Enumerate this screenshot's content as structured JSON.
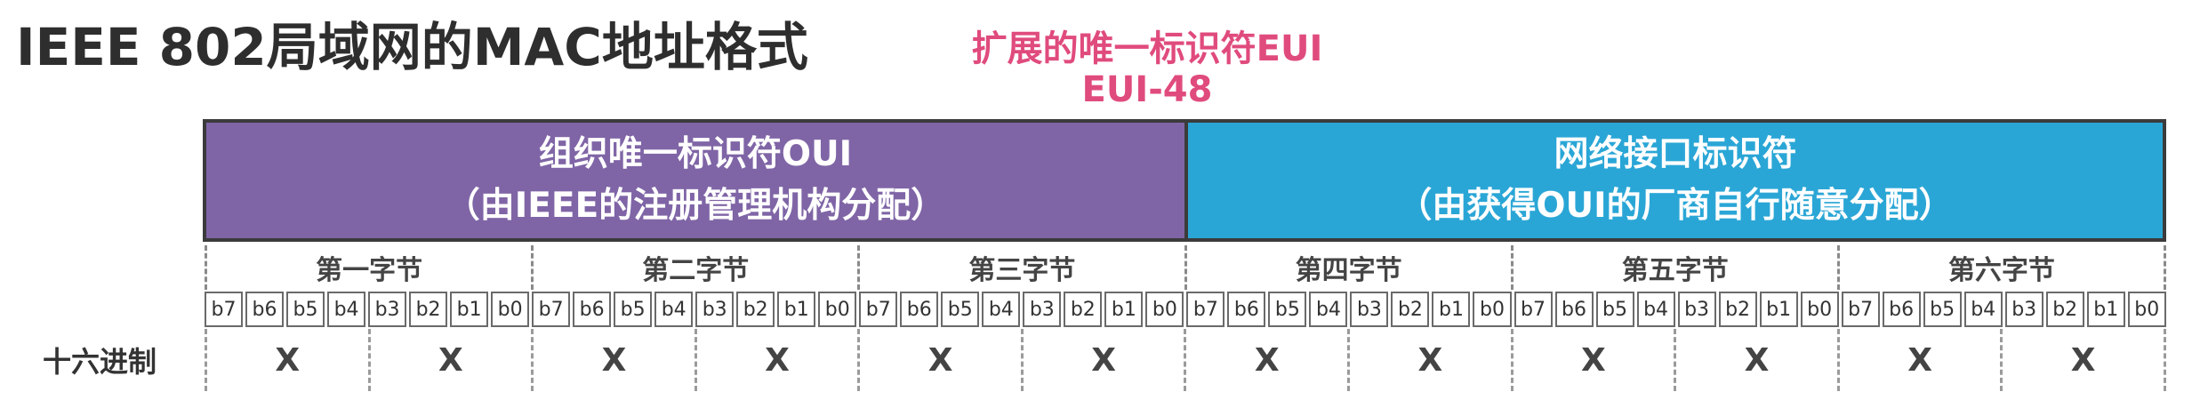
{
  "title": "IEEE 802局域网的MAC地址格式",
  "eui": {
    "line1": "扩展的唯一标识符EUI",
    "line2": "EUI-48"
  },
  "parts": {
    "oui": {
      "title": "组织唯一标识符OUI",
      "note": "（由IEEE的注册管理机构分配）",
      "color": "#7f65a6"
    },
    "nic": {
      "title": "网络接口标识符",
      "note": "（由获得OUI的厂商自行随意分配）",
      "color": "#2aa6d6"
    }
  },
  "bytes": [
    "第一字节",
    "第二字节",
    "第三字节",
    "第四字节",
    "第五字节",
    "第六字节"
  ],
  "bits": [
    "b7",
    "b6",
    "b5",
    "b4",
    "b3",
    "b2",
    "b1",
    "b0"
  ],
  "hex_label": "十六进制",
  "hex_digits": [
    "X",
    "X",
    "X",
    "X",
    "X",
    "X",
    "X",
    "X",
    "X",
    "X",
    "X",
    "X"
  ]
}
